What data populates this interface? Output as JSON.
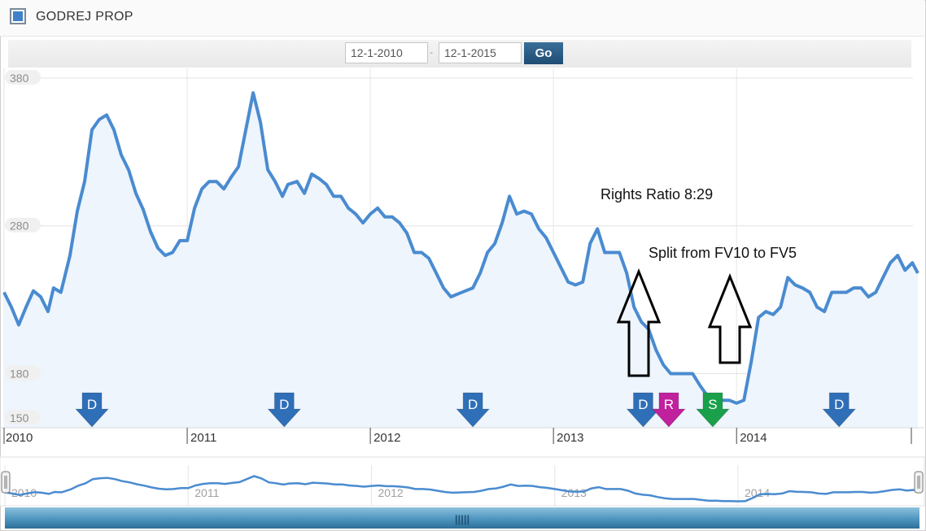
{
  "header": {
    "title": "GODREJ PROP",
    "from_date": "12-1-2010",
    "to_date": "12-1-2015",
    "range_separator": "-",
    "go_label": "Go"
  },
  "colors": {
    "line": "#4a8bd0",
    "fill": "#eef5fd",
    "dividend": "#2f6fb8",
    "rights": "#c0219c",
    "split": "#1aa04a"
  },
  "chart_data": {
    "type": "area",
    "title": "",
    "xlabel": "",
    "ylabel": "",
    "ylim": [
      150,
      380
    ],
    "xlim": [
      2010.0,
      2014.99
    ],
    "y_ticks": [
      {
        "value": 380,
        "label": "380"
      },
      {
        "value": 280,
        "label": "280"
      },
      {
        "value": 180,
        "label": "180"
      },
      {
        "value": 150,
        "label": "150"
      }
    ],
    "x_ticks": [
      {
        "value": 2010,
        "label": "2010"
      },
      {
        "value": 2011,
        "label": "2011"
      },
      {
        "value": 2012,
        "label": "2012"
      },
      {
        "value": 2013,
        "label": "2013"
      },
      {
        "value": 2014,
        "label": "2014"
      }
    ],
    "series": [
      {
        "x": [
          2010.0,
          2010.04,
          2010.08,
          2010.12,
          2010.16,
          2010.2,
          2010.24,
          2010.27,
          2010.31,
          2010.36,
          2010.4,
          2010.44,
          2010.48,
          2010.52,
          2010.56,
          2010.6,
          2010.64,
          2010.68,
          2010.72,
          2010.76,
          2010.8,
          2010.84,
          2010.88,
          2010.92,
          2010.96,
          2011.0,
          2011.04,
          2011.08,
          2011.12,
          2011.16,
          2011.2,
          2011.24,
          2011.28,
          2011.32,
          2011.36,
          2011.4,
          2011.44,
          2011.48,
          2011.5,
          2011.52,
          2011.55,
          2011.6,
          2011.64,
          2011.68,
          2011.72,
          2011.76,
          2011.8,
          2011.84,
          2011.88,
          2011.92,
          2011.96,
          2012.0,
          2012.04,
          2012.08,
          2012.12,
          2012.16,
          2012.2,
          2012.24,
          2012.28,
          2012.32,
          2012.36,
          2012.4,
          2012.44,
          2012.48,
          2012.52,
          2012.56,
          2012.6,
          2012.64,
          2012.68,
          2012.72,
          2012.76,
          2012.8,
          2012.84,
          2012.88,
          2012.92,
          2012.96,
          2013.0,
          2013.04,
          2013.08,
          2013.12,
          2013.16,
          2013.2,
          2013.24,
          2013.28,
          2013.32,
          2013.36,
          2013.4,
          2013.44,
          2013.48,
          2013.52,
          2013.56,
          2013.6,
          2013.64,
          2013.68,
          2013.72,
          2013.76,
          2013.8,
          2013.84,
          2013.88,
          2013.92,
          2013.96,
          2014.0,
          2014.04,
          2014.08,
          2014.12,
          2014.16,
          2014.2,
          2014.24,
          2014.28,
          2014.32,
          2014.36,
          2014.4,
          2014.44,
          2014.48,
          2014.52,
          2014.56,
          2014.6,
          2014.64,
          2014.68,
          2014.72,
          2014.76,
          2014.8,
          2014.84,
          2014.88,
          2014.92,
          2014.96,
          2014.99
        ],
        "values": [
          235,
          225,
          213,
          225,
          236,
          232,
          222,
          238,
          235,
          260,
          290,
          310,
          345,
          352,
          355,
          345,
          328,
          318,
          302,
          291,
          276,
          265,
          260,
          262,
          270,
          270,
          292,
          305,
          310,
          310,
          305,
          313,
          320,
          345,
          370,
          350,
          318,
          310,
          305,
          300,
          308,
          310,
          302,
          315,
          312,
          308,
          300,
          300,
          292,
          288,
          282,
          288,
          292,
          286,
          286,
          282,
          275,
          262,
          262,
          258,
          248,
          238,
          232,
          234,
          236,
          238,
          248,
          262,
          268,
          282,
          300,
          288,
          290,
          288,
          278,
          272,
          262,
          252,
          242,
          240,
          242,
          268,
          278,
          262,
          262,
          262,
          248,
          225,
          215,
          210,
          196,
          186,
          180,
          180,
          180,
          180,
          172,
          165,
          165,
          162,
          162,
          160,
          162,
          188,
          218,
          222,
          220,
          225,
          245,
          240,
          238,
          235,
          225,
          222,
          235,
          235,
          235,
          238,
          238,
          232,
          235,
          245,
          255,
          260,
          250,
          255,
          248
        ]
      }
    ],
    "events": [
      {
        "type": "dividend",
        "x": 2010.48,
        "label": "D"
      },
      {
        "type": "dividend",
        "x": 2011.53,
        "label": "D"
      },
      {
        "type": "dividend",
        "x": 2012.56,
        "label": "D"
      },
      {
        "type": "dividend",
        "x": 2013.49,
        "label": "D"
      },
      {
        "type": "rights",
        "x": 2013.63,
        "label": "R"
      },
      {
        "type": "split",
        "x": 2013.87,
        "label": "S"
      },
      {
        "type": "dividend",
        "x": 2014.56,
        "label": "D"
      }
    ],
    "annotations": [
      {
        "text": "Rights Ratio 8:29"
      },
      {
        "text": "Split from FV10 to FV5"
      }
    ]
  },
  "navigator": {
    "x_labels": [
      "2010",
      "2011",
      "2012",
      "2013",
      "2014"
    ],
    "grip_label": "|||||"
  }
}
